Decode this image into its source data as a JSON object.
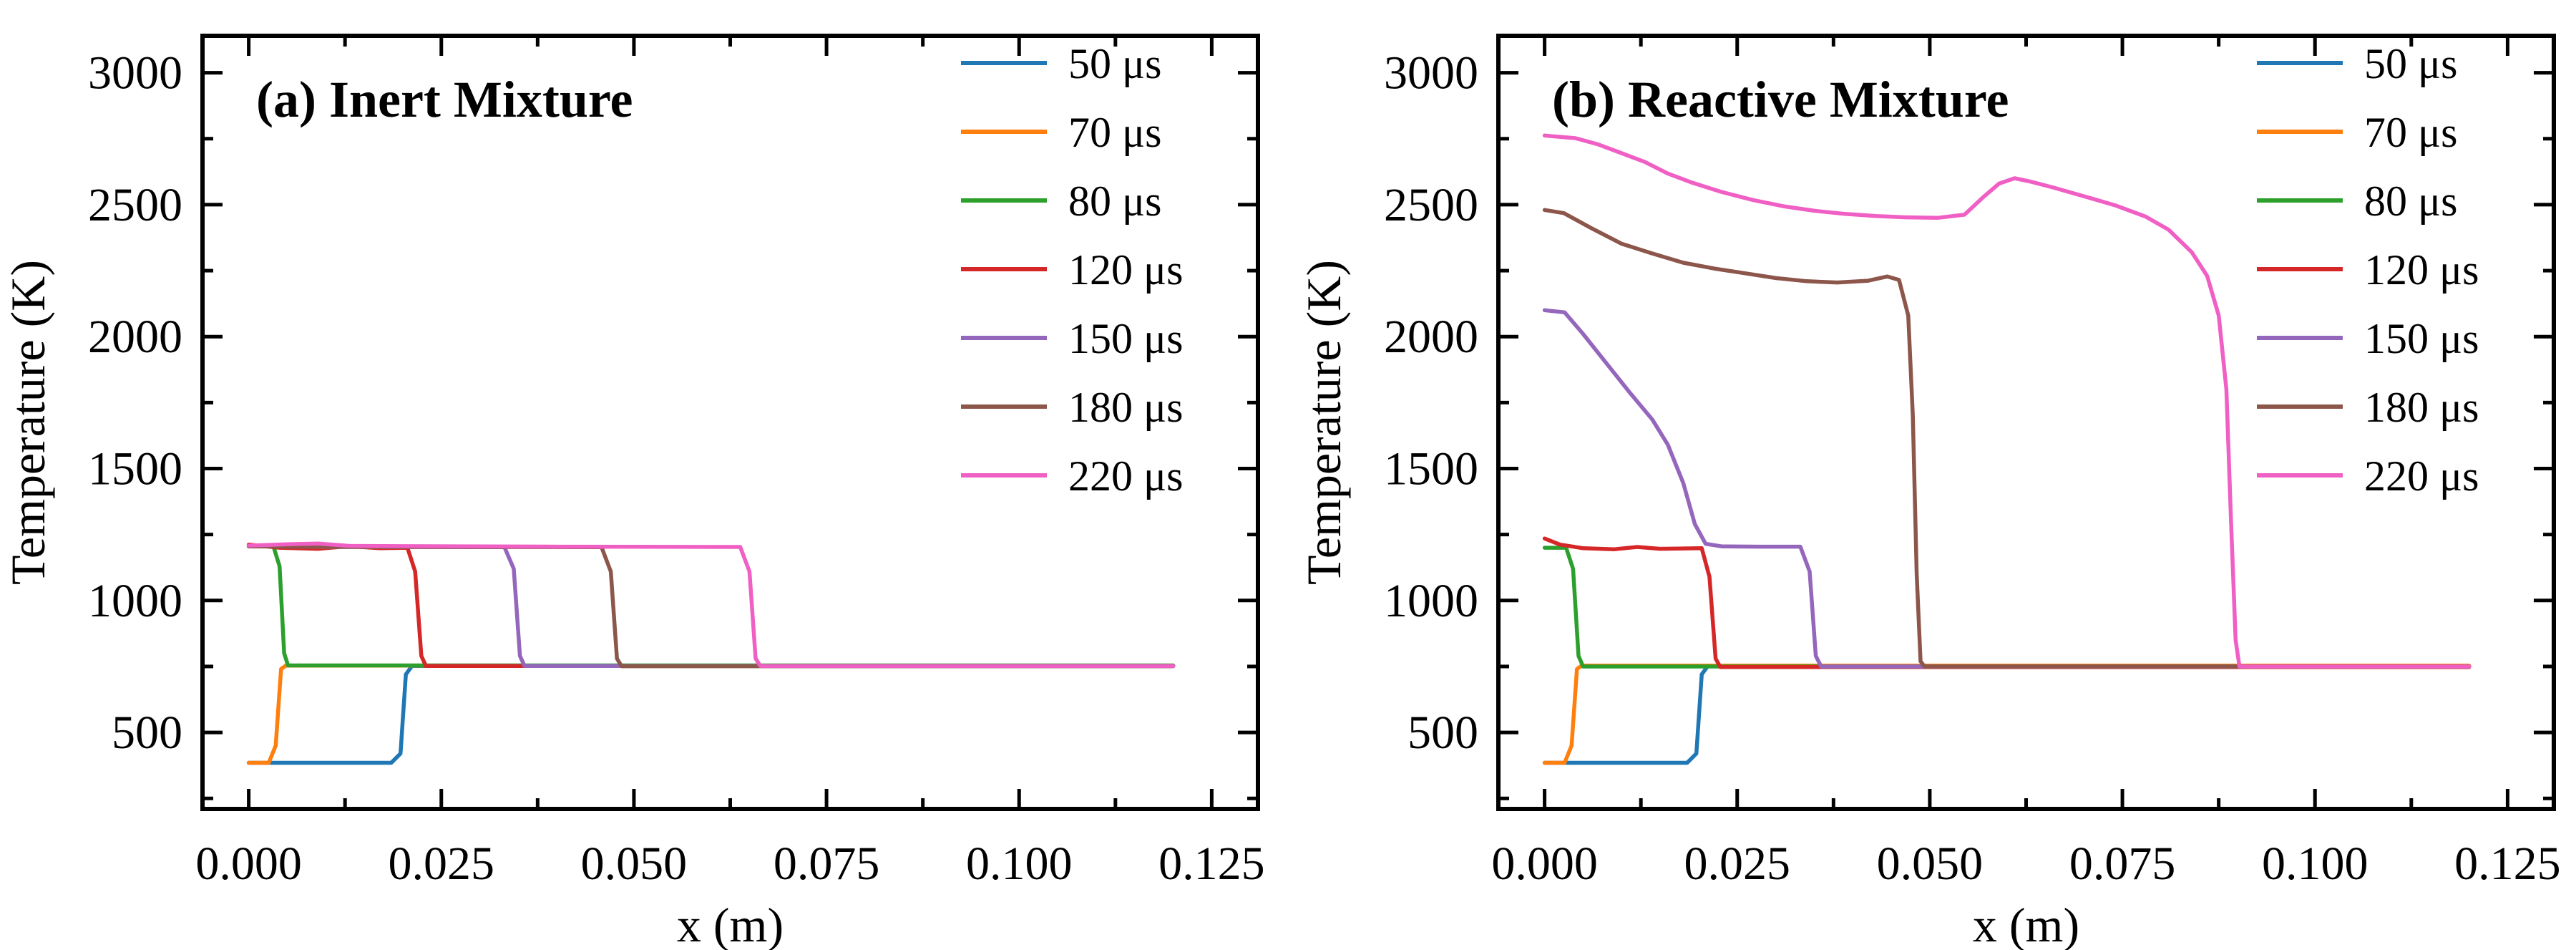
{
  "figure": {
    "background": "#ffffff",
    "axis_color": "#000000"
  },
  "chart_data": [
    {
      "type": "line",
      "title": "(a) Inert Mixture",
      "xlabel": "x (m)",
      "ylabel": "Temperature (K)",
      "xlim": [
        -0.006,
        0.131
      ],
      "ylim": [
        210,
        3140
      ],
      "grid": false,
      "legend_position": "upper right",
      "xticks": {
        "values": [
          0.0,
          0.025,
          0.05,
          0.075,
          0.1,
          0.125
        ],
        "labels": [
          "0.000",
          "0.025",
          "0.050",
          "0.075",
          "0.100",
          "0.125"
        ]
      },
      "yticks": {
        "values": [
          500,
          1000,
          1500,
          2000,
          2500,
          3000
        ],
        "labels": [
          "500",
          "1000",
          "1500",
          "2000",
          "2500",
          "3000"
        ]
      },
      "minor_xticks": [
        0.0125,
        0.0375,
        0.0625,
        0.0875,
        0.1125
      ],
      "minor_yticks": [
        250,
        750,
        1250,
        1750,
        2250,
        2750
      ],
      "series": [
        {
          "name": "50 μs",
          "color": "#1f77b4",
          "points": [
            [
              0,
              385
            ],
            [
              0.0185,
              385
            ],
            [
              0.0197,
              420
            ],
            [
              0.0204,
              720
            ],
            [
              0.0212,
              752
            ],
            [
              0.12,
              752
            ]
          ]
        },
        {
          "name": "70 μs",
          "color": "#ff7f0e",
          "points": [
            [
              0,
              385
            ],
            [
              0.0026,
              385
            ],
            [
              0.0035,
              450
            ],
            [
              0.0042,
              740
            ],
            [
              0.0048,
              753
            ],
            [
              0.12,
              753
            ]
          ]
        },
        {
          "name": "80 μs",
          "color": "#2ca02c",
          "points": [
            [
              0,
              1205
            ],
            [
              0.0032,
              1205
            ],
            [
              0.004,
              1130
            ],
            [
              0.0046,
              800
            ],
            [
              0.0051,
              754
            ],
            [
              0.12,
              754
            ]
          ]
        },
        {
          "name": "120 μs",
          "color": "#d62728",
          "points": [
            [
              0,
              1212
            ],
            [
              0.004,
              1200
            ],
            [
              0.009,
              1196
            ],
            [
              0.013,
              1206
            ],
            [
              0.017,
              1198
            ],
            [
              0.0206,
              1200
            ],
            [
              0.0216,
              1110
            ],
            [
              0.0224,
              790
            ],
            [
              0.023,
              752
            ],
            [
              0.12,
              752
            ]
          ]
        },
        {
          "name": "150 μs",
          "color": "#9467bd",
          "points": [
            [
              0,
              1206
            ],
            [
              0.01,
              1203
            ],
            [
              0.02,
              1203
            ],
            [
              0.0332,
              1202
            ],
            [
              0.0344,
              1120
            ],
            [
              0.0352,
              790
            ],
            [
              0.0358,
              752
            ],
            [
              0.12,
              752
            ]
          ]
        },
        {
          "name": "180 μs",
          "color": "#8c564b",
          "points": [
            [
              0,
              1205
            ],
            [
              0.015,
              1203
            ],
            [
              0.03,
              1203
            ],
            [
              0.0458,
              1202
            ],
            [
              0.047,
              1110
            ],
            [
              0.0478,
              780
            ],
            [
              0.0484,
              751
            ],
            [
              0.12,
              751
            ]
          ]
        },
        {
          "name": "220 μs",
          "color": "#f05fc4",
          "points": [
            [
              0,
              1208
            ],
            [
              0.005,
              1213
            ],
            [
              0.009,
              1216
            ],
            [
              0.013,
              1207
            ],
            [
              0.02,
              1206
            ],
            [
              0.04,
              1204
            ],
            [
              0.0638,
              1203
            ],
            [
              0.065,
              1110
            ],
            [
              0.0658,
              780
            ],
            [
              0.0664,
              752
            ],
            [
              0.12,
              752
            ]
          ]
        }
      ]
    },
    {
      "type": "line",
      "title": "(b) Reactive Mixture",
      "xlabel": "x (m)",
      "ylabel": "Temperature (K)",
      "xlim": [
        -0.006,
        0.131
      ],
      "ylim": [
        210,
        3140
      ],
      "grid": false,
      "legend_position": "upper right",
      "xticks": {
        "values": [
          0.0,
          0.025,
          0.05,
          0.075,
          0.1,
          0.125
        ],
        "labels": [
          "0.000",
          "0.025",
          "0.050",
          "0.075",
          "0.100",
          "0.125"
        ]
      },
      "yticks": {
        "values": [
          500,
          1000,
          1500,
          2000,
          2500,
          3000
        ],
        "labels": [
          "500",
          "1000",
          "1500",
          "2000",
          "2500",
          "3000"
        ]
      },
      "minor_xticks": [
        0.0125,
        0.0375,
        0.0625,
        0.0875,
        0.1125
      ],
      "minor_yticks": [
        250,
        750,
        1250,
        1750,
        2250,
        2750
      ],
      "series": [
        {
          "name": "50 μs",
          "color": "#1f77b4",
          "points": [
            [
              0,
              385
            ],
            [
              0.0185,
              385
            ],
            [
              0.0197,
              420
            ],
            [
              0.0204,
              720
            ],
            [
              0.0212,
              752
            ],
            [
              0.12,
              752
            ]
          ]
        },
        {
          "name": "70 μs",
          "color": "#ff7f0e",
          "points": [
            [
              0,
              385
            ],
            [
              0.0026,
              385
            ],
            [
              0.0035,
              450
            ],
            [
              0.0042,
              740
            ],
            [
              0.0048,
              753
            ],
            [
              0.12,
              753
            ]
          ]
        },
        {
          "name": "80 μs",
          "color": "#2ca02c",
          "points": [
            [
              0,
              1200
            ],
            [
              0.0028,
              1200
            ],
            [
              0.0037,
              1120
            ],
            [
              0.0044,
              790
            ],
            [
              0.005,
              750
            ],
            [
              0.12,
              750
            ]
          ]
        },
        {
          "name": "120 μs",
          "color": "#d62728",
          "points": [
            [
              0,
              1235
            ],
            [
              0.002,
              1212
            ],
            [
              0.005,
              1198
            ],
            [
              0.009,
              1194
            ],
            [
              0.012,
              1203
            ],
            [
              0.015,
              1196
            ],
            [
              0.0204,
              1198
            ],
            [
              0.0214,
              1090
            ],
            [
              0.0222,
              780
            ],
            [
              0.0228,
              748
            ],
            [
              0.12,
              748
            ]
          ]
        },
        {
          "name": "150 μs",
          "color": "#9467bd",
          "points": [
            [
              0,
              2100
            ],
            [
              0.0026,
              2092
            ],
            [
              0.005,
              2010
            ],
            [
              0.008,
              1900
            ],
            [
              0.011,
              1790
            ],
            [
              0.014,
              1685
            ],
            [
              0.016,
              1590
            ],
            [
              0.018,
              1445
            ],
            [
              0.0195,
              1290
            ],
            [
              0.0209,
              1215
            ],
            [
              0.023,
              1205
            ],
            [
              0.028,
              1204
            ],
            [
              0.0332,
              1204
            ],
            [
              0.0344,
              1110
            ],
            [
              0.0352,
              790
            ],
            [
              0.0359,
              750
            ],
            [
              0.12,
              750
            ]
          ]
        },
        {
          "name": "180 μs",
          "color": "#8c564b",
          "points": [
            [
              0,
              2480
            ],
            [
              0.0025,
              2468
            ],
            [
              0.006,
              2412
            ],
            [
              0.01,
              2352
            ],
            [
              0.014,
              2315
            ],
            [
              0.018,
              2280
            ],
            [
              0.022,
              2258
            ],
            [
              0.026,
              2240
            ],
            [
              0.03,
              2222
            ],
            [
              0.034,
              2210
            ],
            [
              0.038,
              2205
            ],
            [
              0.042,
              2212
            ],
            [
              0.0445,
              2228
            ],
            [
              0.046,
              2215
            ],
            [
              0.0472,
              2080
            ],
            [
              0.0478,
              1700
            ],
            [
              0.0483,
              1100
            ],
            [
              0.0488,
              770
            ],
            [
              0.0493,
              750
            ],
            [
              0.12,
              750
            ]
          ]
        },
        {
          "name": "220 μs",
          "color": "#f05fc4",
          "points": [
            [
              0,
              2762
            ],
            [
              0.004,
              2752
            ],
            [
              0.007,
              2728
            ],
            [
              0.01,
              2695
            ],
            [
              0.013,
              2662
            ],
            [
              0.016,
              2618
            ],
            [
              0.019,
              2585
            ],
            [
              0.023,
              2548
            ],
            [
              0.027,
              2518
            ],
            [
              0.031,
              2494
            ],
            [
              0.035,
              2477
            ],
            [
              0.039,
              2465
            ],
            [
              0.043,
              2457
            ],
            [
              0.047,
              2452
            ],
            [
              0.051,
              2450
            ],
            [
              0.0545,
              2462
            ],
            [
              0.057,
              2530
            ],
            [
              0.059,
              2580
            ],
            [
              0.061,
              2600
            ],
            [
              0.063,
              2588
            ],
            [
              0.066,
              2565
            ],
            [
              0.07,
              2532
            ],
            [
              0.074,
              2498
            ],
            [
              0.078,
              2455
            ],
            [
              0.081,
              2405
            ],
            [
              0.084,
              2320
            ],
            [
              0.086,
              2230
            ],
            [
              0.0875,
              2080
            ],
            [
              0.0885,
              1800
            ],
            [
              0.0891,
              1300
            ],
            [
              0.0897,
              850
            ],
            [
              0.0902,
              750
            ],
            [
              0.12,
              750
            ]
          ]
        }
      ]
    }
  ]
}
